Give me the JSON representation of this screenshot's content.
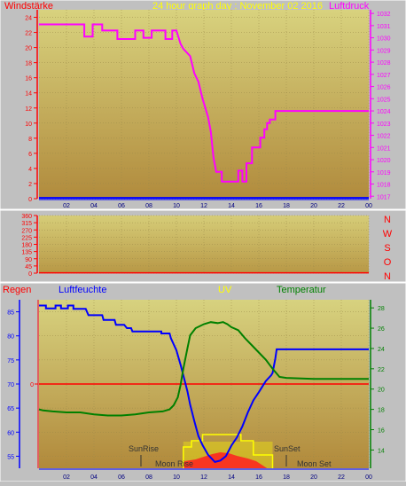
{
  "top_header": {
    "left": "Windstärke",
    "center": "24 hour graph day : November 02 2016",
    "right": "Luftdruck"
  },
  "dir_labels": [
    "N",
    "W",
    "S",
    "O",
    "N"
  ],
  "bottom_header": {
    "regen": "Regen",
    "luftfeuchte": "Luftfeuchte",
    "uv": "UV",
    "temperatur": "Temperatur"
  },
  "annotations": {
    "sunrise": "SunRise",
    "moonrise": "Moon Rise",
    "sunset": "SunSet",
    "moonset": "Moon Set"
  },
  "colors": {
    "wind_text": "#ff0000",
    "pressure": "#ff00ff",
    "date_text": "#ffff00",
    "humidity": "#0000ff",
    "temperature": "#008000",
    "uv_text": "#ffff00",
    "rain": "#ff0000",
    "panel_top": "#d6cf7c",
    "panel_bottom": "#b08a3c"
  },
  "chart_data": [
    {
      "type": "line",
      "name": "wind-pressure",
      "x_ticks": [
        "02",
        "04",
        "06",
        "08",
        "10",
        "12",
        "14",
        "16",
        "18",
        "20",
        "22",
        "00"
      ],
      "xlim": [
        0,
        24
      ],
      "y_left_ticks": [
        "0",
        "2",
        "4",
        "6",
        "8",
        "10",
        "12",
        "14",
        "16",
        "18",
        "20",
        "22",
        "24"
      ],
      "y_left_lim": [
        0,
        25
      ],
      "y_right_ticks": [
        "1017",
        "1018",
        "1019",
        "1020",
        "1021",
        "1022",
        "1023",
        "1024",
        "1025",
        "1026",
        "1027",
        "1028",
        "1029",
        "1030",
        "1031",
        "1032"
      ],
      "y_right_lim": [
        1016.8,
        1032.3
      ],
      "series": [
        {
          "name": "Luftdruck",
          "axis": "right",
          "values": [
            [
              0,
              1031.1
            ],
            [
              3.3,
              1031.1
            ],
            [
              3.3,
              1030.1
            ],
            [
              3.9,
              1030.1
            ],
            [
              3.9,
              1031.1
            ],
            [
              4.6,
              1031.1
            ],
            [
              4.6,
              1030.6
            ],
            [
              5.7,
              1030.6
            ],
            [
              5.7,
              1029.9
            ],
            [
              7.0,
              1029.9
            ],
            [
              7.0,
              1030.6
            ],
            [
              7.6,
              1030.6
            ],
            [
              7.6,
              1030.0
            ],
            [
              8.2,
              1030.0
            ],
            [
              8.2,
              1030.6
            ],
            [
              9.2,
              1030.6
            ],
            [
              9.2,
              1029.9
            ],
            [
              9.7,
              1029.9
            ],
            [
              9.7,
              1030.6
            ],
            [
              10.0,
              1030.6
            ],
            [
              10.3,
              1029.5
            ],
            [
              10.5,
              1029.1
            ],
            [
              11.0,
              1028.5
            ],
            [
              11.3,
              1027.1
            ],
            [
              11.6,
              1026.4
            ],
            [
              11.9,
              1025.0
            ],
            [
              12.3,
              1023.5
            ],
            [
              12.5,
              1022.3
            ],
            [
              12.7,
              1020.2
            ],
            [
              12.9,
              1019.0
            ],
            [
              13.3,
              1019.0
            ],
            [
              13.3,
              1018.2
            ],
            [
              14.5,
              1018.2
            ],
            [
              14.5,
              1019.1
            ],
            [
              14.8,
              1019.1
            ],
            [
              14.8,
              1018.2
            ],
            [
              15.1,
              1018.2
            ],
            [
              15.1,
              1019.7
            ],
            [
              15.5,
              1019.7
            ],
            [
              15.5,
              1021.0
            ],
            [
              16.1,
              1021.0
            ],
            [
              16.1,
              1021.8
            ],
            [
              16.4,
              1021.8
            ],
            [
              16.4,
              1022.5
            ],
            [
              16.6,
              1022.5
            ],
            [
              16.6,
              1023.0
            ],
            [
              16.8,
              1023.0
            ],
            [
              16.8,
              1023.3
            ],
            [
              17.2,
              1023.3
            ],
            [
              17.2,
              1024.0
            ],
            [
              24,
              1024.0
            ]
          ]
        },
        {
          "name": "Windstärke",
          "axis": "left",
          "values": [
            [
              0,
              0.1
            ],
            [
              24,
              0.1
            ]
          ]
        }
      ]
    },
    {
      "type": "line",
      "name": "wind-direction",
      "x_ticks": [],
      "xlim": [
        0,
        24
      ],
      "y_ticks": [
        "0",
        "45",
        "90",
        "135",
        "180",
        "225",
        "270",
        "315",
        "360"
      ],
      "ylim": [
        0,
        360
      ],
      "series": [
        {
          "name": "direction",
          "values": [
            [
              0,
              2
            ],
            [
              24,
              2
            ]
          ]
        }
      ]
    },
    {
      "type": "line",
      "name": "humidity-temperature-uv",
      "x_ticks": [
        "02",
        "04",
        "06",
        "08",
        "10",
        "12",
        "14",
        "16",
        "18",
        "20",
        "22",
        "00"
      ],
      "xlim": [
        0,
        24
      ],
      "y_left_ticks": [
        "55",
        "60",
        "65",
        "70",
        "75",
        "80",
        "85"
      ],
      "y_left_lim": [
        52.5,
        87.5
      ],
      "y_right_ticks": [
        "14",
        "16",
        "18",
        "20",
        "22",
        "24",
        "26",
        "28"
      ],
      "y_right_lim": [
        12.2,
        28.8
      ],
      "y_inner_ticks": [
        "0"
      ],
      "series": [
        {
          "name": "Luftfeuchte",
          "axis": "left",
          "values": [
            [
              0,
              86.3
            ],
            [
              0.5,
              86.3
            ],
            [
              0.5,
              85.7
            ],
            [
              1.2,
              85.7
            ],
            [
              1.2,
              86.3
            ],
            [
              1.6,
              86.3
            ],
            [
              1.6,
              85.7
            ],
            [
              2.1,
              85.7
            ],
            [
              2.1,
              86.3
            ],
            [
              2.5,
              86.3
            ],
            [
              2.5,
              85.6
            ],
            [
              3.4,
              85.6
            ],
            [
              3.6,
              84.3
            ],
            [
              4.6,
              84.3
            ],
            [
              4.7,
              83.3
            ],
            [
              5.5,
              83.3
            ],
            [
              5.6,
              82.3
            ],
            [
              6.2,
              82.3
            ],
            [
              6.4,
              81.6
            ],
            [
              6.7,
              81.6
            ],
            [
              6.8,
              80.9
            ],
            [
              8.9,
              80.9
            ],
            [
              8.9,
              80.5
            ],
            [
              9.5,
              80.5
            ],
            [
              9.6,
              79.5
            ],
            [
              10.0,
              77.0
            ],
            [
              10.3,
              74.0
            ],
            [
              10.5,
              71.8
            ],
            [
              10.8,
              68.5
            ],
            [
              11.0,
              65.7
            ],
            [
              11.3,
              62.3
            ],
            [
              11.6,
              59.2
            ],
            [
              11.9,
              57.3
            ],
            [
              12.3,
              55.3
            ],
            [
              12.8,
              53.8
            ],
            [
              13.2,
              54.1
            ],
            [
              13.6,
              55.0
            ],
            [
              14.0,
              57.2
            ],
            [
              14.4,
              58.9
            ],
            [
              14.8,
              61.2
            ],
            [
              15.2,
              64.1
            ],
            [
              15.6,
              66.6
            ],
            [
              16.0,
              68.3
            ],
            [
              16.5,
              70.6
            ],
            [
              16.9,
              71.8
            ],
            [
              17.0,
              72.3
            ],
            [
              17.2,
              75.3
            ],
            [
              17.3,
              77.2
            ],
            [
              24,
              77.2
            ]
          ]
        },
        {
          "name": "Temperatur",
          "axis": "right",
          "values": [
            [
              0,
              18.0
            ],
            [
              0.3,
              17.9
            ],
            [
              1.0,
              17.8
            ],
            [
              2.0,
              17.7
            ],
            [
              3.0,
              17.7
            ],
            [
              4.0,
              17.5
            ],
            [
              5.0,
              17.4
            ],
            [
              6.0,
              17.4
            ],
            [
              7.0,
              17.5
            ],
            [
              8.0,
              17.7
            ],
            [
              9.0,
              17.8
            ],
            [
              9.5,
              18.0
            ],
            [
              9.8,
              18.4
            ],
            [
              10.1,
              19.2
            ],
            [
              10.3,
              20.4
            ],
            [
              10.5,
              22.0
            ],
            [
              10.8,
              24.0
            ],
            [
              11.0,
              25.3
            ],
            [
              11.4,
              26.0
            ],
            [
              12.0,
              26.4
            ],
            [
              12.5,
              26.6
            ],
            [
              13.0,
              26.5
            ],
            [
              13.4,
              26.6
            ],
            [
              13.7,
              26.4
            ],
            [
              14.0,
              26.1
            ],
            [
              14.5,
              25.8
            ],
            [
              15.0,
              25.0
            ],
            [
              15.5,
              24.3
            ],
            [
              16.0,
              23.6
            ],
            [
              16.5,
              22.9
            ],
            [
              17.0,
              22.0
            ],
            [
              17.5,
              21.2
            ],
            [
              18.0,
              21.1
            ],
            [
              20.0,
              21.0
            ],
            [
              24,
              21.0
            ]
          ]
        }
      ],
      "rain": 0,
      "uv_sun_window": [
        10.5,
        17.0
      ],
      "sunrise_hour": 7.4,
      "sunset_hour": 16.8,
      "moonrise_hour": 9.0,
      "moonset_hour": 17.6
    }
  ]
}
